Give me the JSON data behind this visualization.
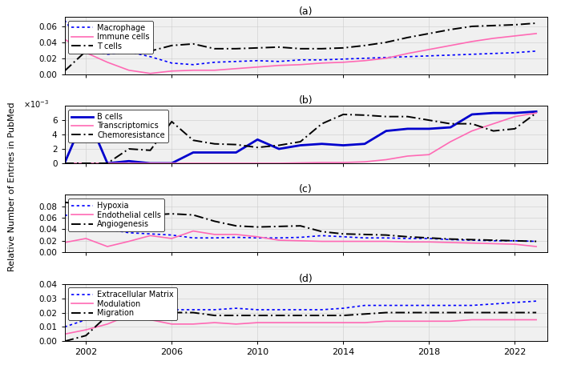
{
  "years": [
    2001,
    2002,
    2003,
    2004,
    2005,
    2006,
    2007,
    2008,
    2009,
    2010,
    2011,
    2012,
    2013,
    2014,
    2015,
    2016,
    2017,
    2018,
    2019,
    2020,
    2021,
    2022,
    2023
  ],
  "panel_a": {
    "title": "(a)",
    "Macrophage": [
      0.068,
      0.03,
      0.025,
      0.028,
      0.022,
      0.014,
      0.012,
      0.015,
      0.016,
      0.017,
      0.016,
      0.018,
      0.018,
      0.019,
      0.02,
      0.021,
      0.022,
      0.023,
      0.024,
      0.025,
      0.026,
      0.027,
      0.029
    ],
    "Immune_cells": [
      0.044,
      0.027,
      0.015,
      0.005,
      0.001,
      0.004,
      0.005,
      0.005,
      0.007,
      0.009,
      0.011,
      0.012,
      0.014,
      0.015,
      0.017,
      0.02,
      0.026,
      0.031,
      0.036,
      0.041,
      0.045,
      0.048,
      0.051
    ],
    "T_cells": [
      0.004,
      0.029,
      0.048,
      0.053,
      0.029,
      0.036,
      0.038,
      0.032,
      0.032,
      0.033,
      0.034,
      0.032,
      0.032,
      0.033,
      0.036,
      0.04,
      0.046,
      0.051,
      0.056,
      0.06,
      0.061,
      0.062,
      0.064
    ],
    "ylim": [
      0,
      0.072
    ],
    "yticks": [
      0,
      0.02,
      0.04,
      0.06
    ],
    "colors": {
      "Macrophage": "#0000FF",
      "Immune_cells": "#FF69B4",
      "T_cells": "#000000"
    },
    "styles": {
      "Macrophage": "dotted",
      "Immune_cells": "solid",
      "T_cells": "dashdot"
    },
    "legend_loc": "upper left"
  },
  "panel_b": {
    "title": "(b)",
    "B_cells": [
      0.0,
      7.0,
      0.0,
      0.3,
      0.0,
      0.0,
      1.5,
      1.5,
      1.5,
      3.3,
      2.0,
      2.5,
      2.7,
      2.5,
      2.7,
      4.5,
      4.8,
      4.8,
      5.0,
      6.8,
      7.0,
      7.0,
      7.2
    ],
    "Transcriptomics": [
      0.0,
      0.0,
      0.0,
      0.0,
      0.0,
      0.0,
      0.0,
      0.0,
      0.0,
      0.0,
      0.0,
      0.05,
      0.1,
      0.1,
      0.2,
      0.5,
      1.0,
      1.2,
      3.0,
      4.5,
      5.5,
      6.5,
      7.0
    ],
    "Chemoresistance": [
      0.0,
      0.0,
      0.0,
      2.0,
      1.8,
      5.8,
      3.2,
      2.7,
      2.6,
      2.2,
      2.5,
      3.0,
      5.5,
      6.8,
      6.7,
      6.5,
      6.5,
      6.0,
      5.5,
      5.5,
      4.5,
      4.8,
      7.0
    ],
    "ylim": [
      0,
      8.0
    ],
    "yticks": [
      0,
      2,
      4,
      6
    ],
    "scale": 0.001,
    "colors": {
      "B_cells": "#0000CD",
      "Transcriptomics": "#FF69B4",
      "Chemoresistance": "#000000"
    },
    "styles": {
      "B_cells": "solid",
      "Transcriptomics": "solid",
      "Chemoresistance": "dashdot"
    },
    "legend_loc": "upper left"
  },
  "panel_c": {
    "title": "(c)",
    "Hypoxia": [
      0.065,
      0.058,
      0.04,
      0.034,
      0.032,
      0.03,
      0.025,
      0.025,
      0.026,
      0.025,
      0.025,
      0.026,
      0.029,
      0.027,
      0.025,
      0.025,
      0.024,
      0.024,
      0.022,
      0.021,
      0.02,
      0.02,
      0.019
    ],
    "Endothelial_cells": [
      0.017,
      0.024,
      0.01,
      0.019,
      0.029,
      0.024,
      0.037,
      0.031,
      0.031,
      0.027,
      0.021,
      0.02,
      0.019,
      0.019,
      0.019,
      0.019,
      0.018,
      0.018,
      0.017,
      0.016,
      0.015,
      0.014,
      0.01
    ],
    "Angiogenesis": [
      0.087,
      0.083,
      0.053,
      0.053,
      0.065,
      0.067,
      0.065,
      0.054,
      0.046,
      0.044,
      0.045,
      0.046,
      0.036,
      0.032,
      0.031,
      0.03,
      0.027,
      0.025,
      0.023,
      0.022,
      0.021,
      0.02,
      0.019
    ],
    "ylim": [
      0,
      0.1
    ],
    "yticks": [
      0,
      0.02,
      0.04,
      0.06,
      0.08
    ],
    "colors": {
      "Hypoxia": "#0000FF",
      "Endothelial_cells": "#FF69B4",
      "Angiogenesis": "#000000"
    },
    "styles": {
      "Hypoxia": "dotted",
      "Endothelial_cells": "solid",
      "Angiogenesis": "dashdot"
    },
    "legend_loc": "upper left"
  },
  "panel_d": {
    "title": "(d)",
    "Extracellular_Matrix": [
      0.01,
      0.015,
      0.02,
      0.028,
      0.025,
      0.022,
      0.022,
      0.022,
      0.023,
      0.022,
      0.022,
      0.022,
      0.022,
      0.023,
      0.025,
      0.025,
      0.025,
      0.025,
      0.025,
      0.025,
      0.026,
      0.027,
      0.028
    ],
    "Modulation": [
      0.005,
      0.008,
      0.012,
      0.018,
      0.015,
      0.012,
      0.012,
      0.013,
      0.012,
      0.013,
      0.013,
      0.013,
      0.013,
      0.013,
      0.013,
      0.014,
      0.014,
      0.014,
      0.014,
      0.015,
      0.015,
      0.015,
      0.015
    ],
    "Migration": [
      0.0,
      0.004,
      0.018,
      0.025,
      0.022,
      0.02,
      0.02,
      0.018,
      0.018,
      0.018,
      0.018,
      0.018,
      0.018,
      0.018,
      0.019,
      0.02,
      0.02,
      0.02,
      0.02,
      0.02,
      0.02,
      0.02,
      0.02
    ],
    "ylim": [
      0,
      0.04
    ],
    "yticks": [
      0,
      0.01,
      0.02,
      0.03,
      0.04
    ],
    "colors": {
      "Extracellular_Matrix": "#0000FF",
      "Modulation": "#FF69B4",
      "Migration": "#000000"
    },
    "styles": {
      "Extracellular_Matrix": "dotted",
      "Modulation": "solid",
      "Migration": "dashdot"
    },
    "legend_loc": "upper left"
  },
  "xlim": [
    2001,
    2023.5
  ],
  "xticks": [
    2002,
    2006,
    2010,
    2014,
    2018,
    2022
  ],
  "ylabel": "Relative Number of Entries in PubMed",
  "bg_color": "#f0f0f0"
}
